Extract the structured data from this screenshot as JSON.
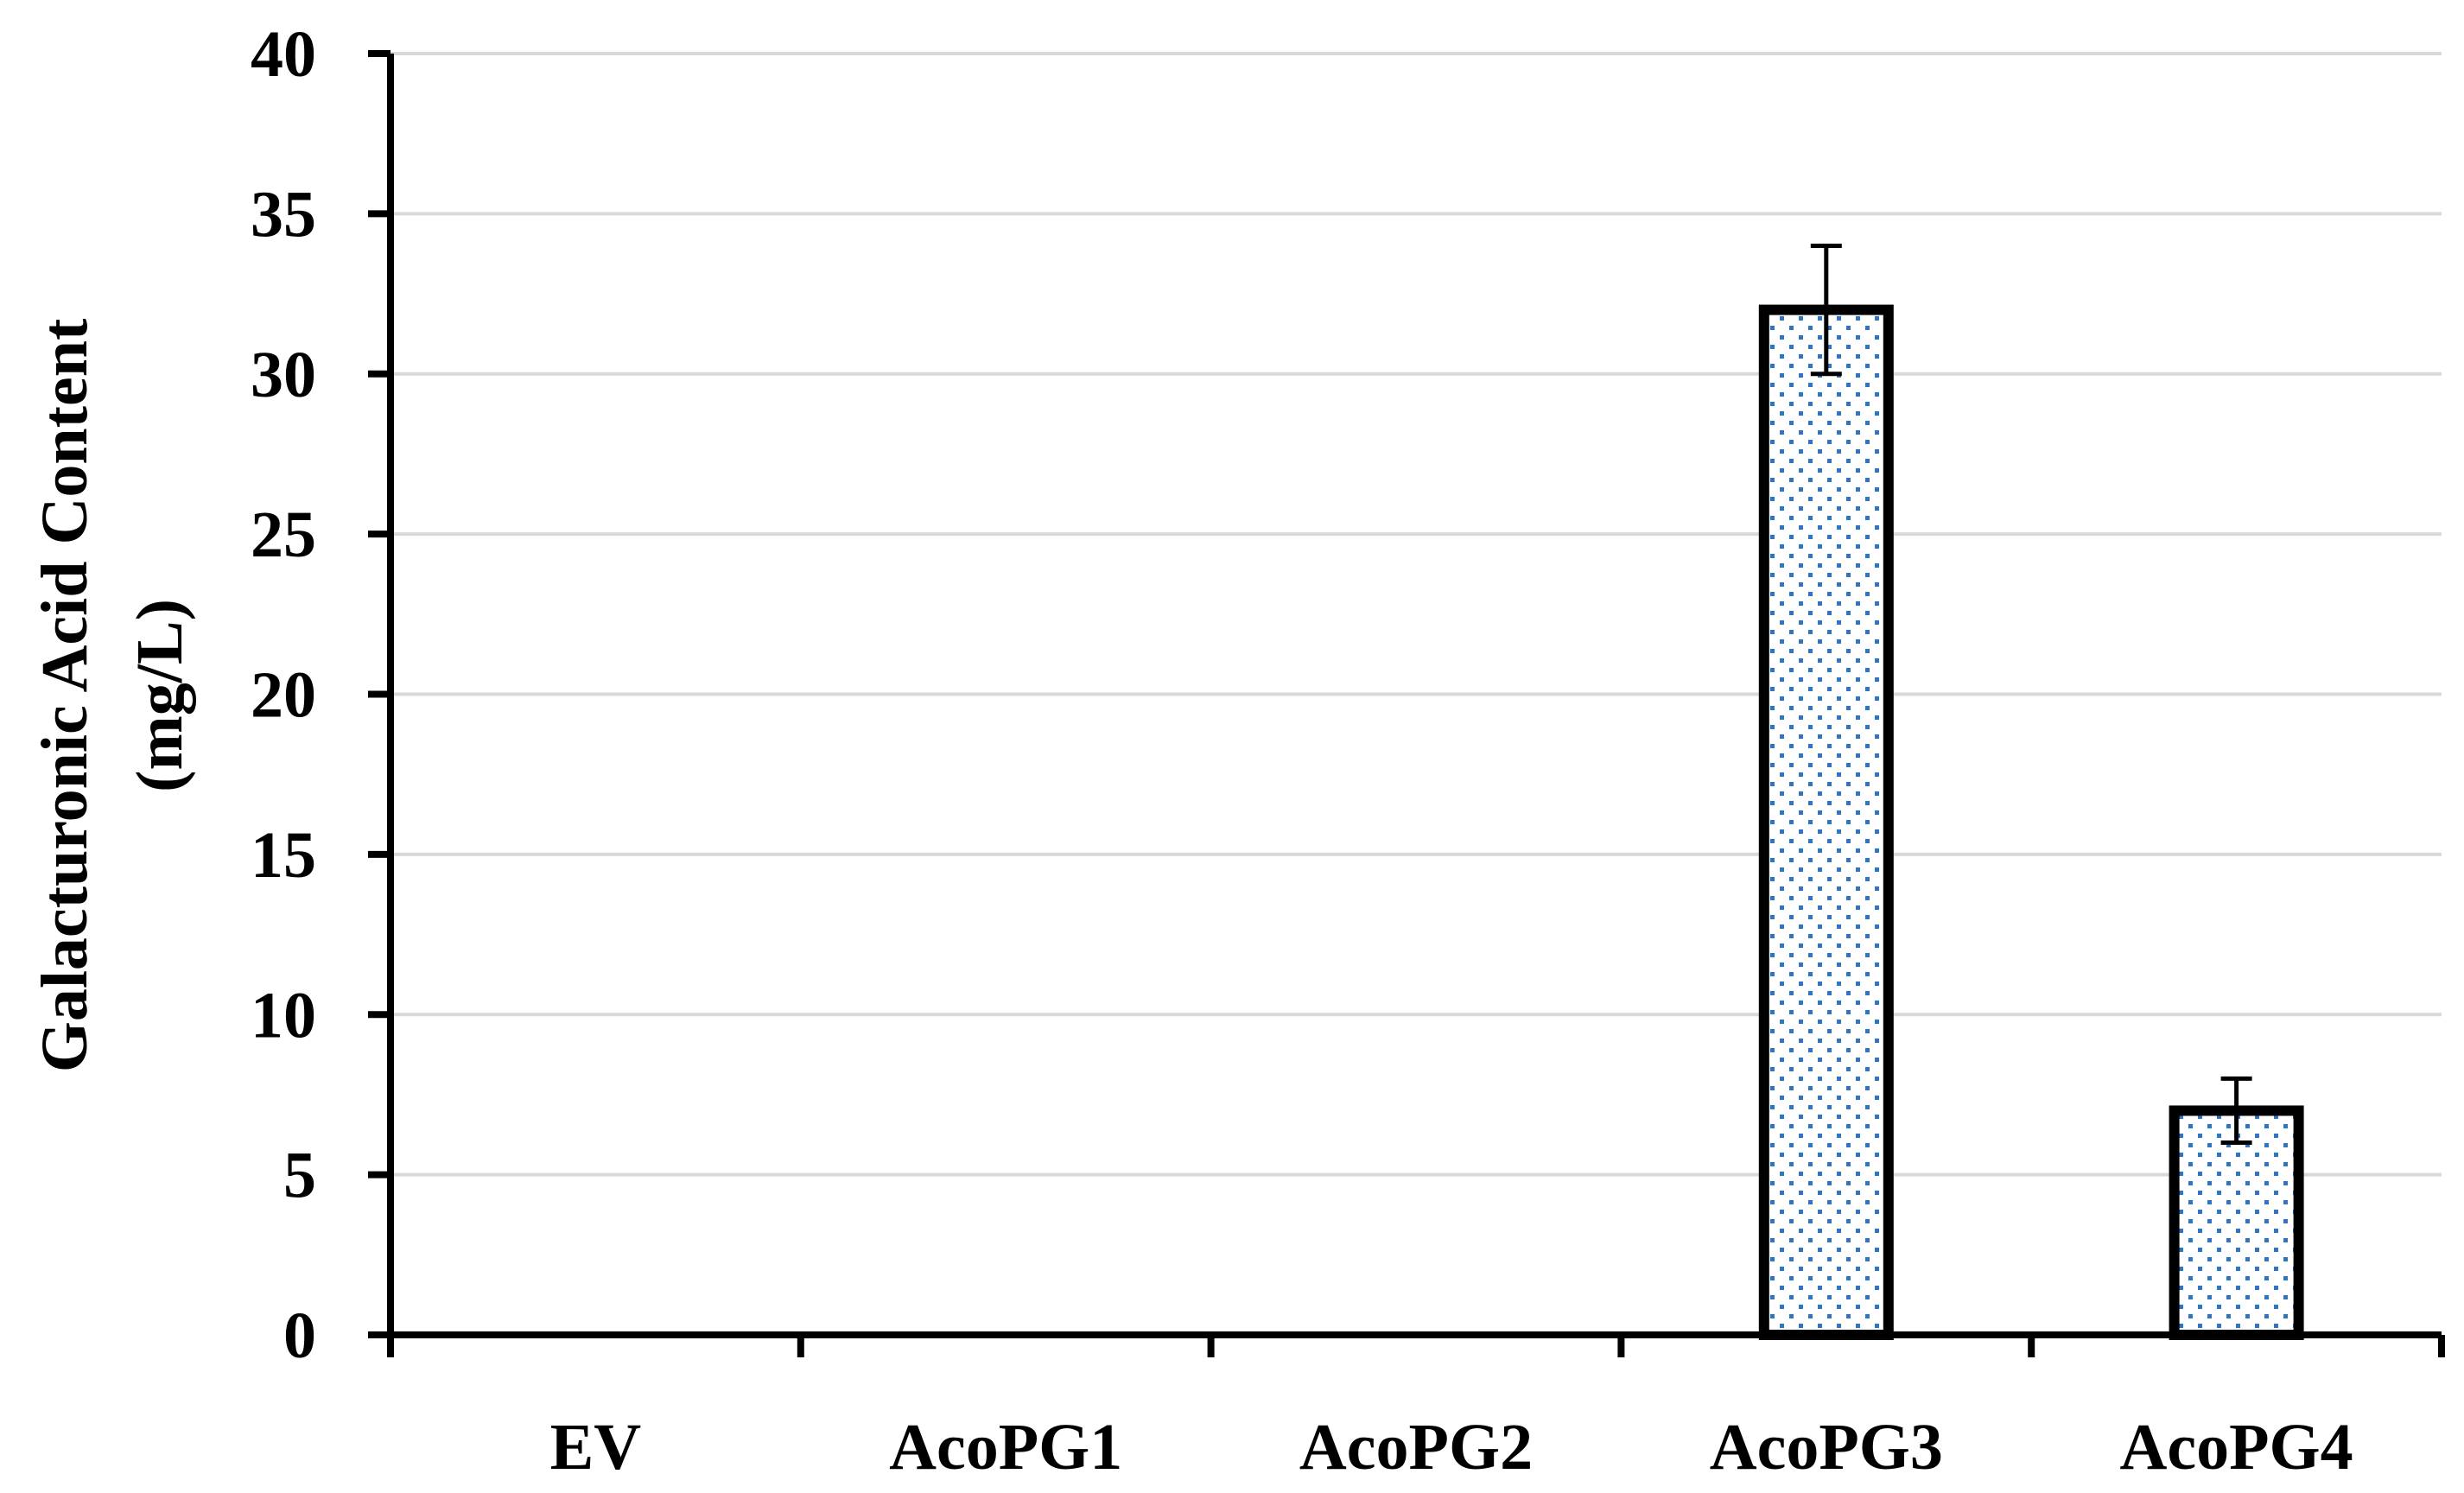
{
  "chart_data": {
    "type": "bar",
    "title": "",
    "xlabel": "",
    "ylabel_lines": [
      "Galacturonic Acid Content",
      "(mg/L)"
    ],
    "categories": [
      "EV",
      "AcoPG1",
      "AcoPG2",
      "AcoPG3",
      "AcoPG4"
    ],
    "values": [
      0,
      0,
      0,
      32,
      7
    ],
    "error": [
      0,
      0,
      0,
      2,
      1
    ],
    "ylim": [
      0,
      40
    ],
    "yticks": [
      0,
      5,
      10,
      15,
      20,
      25,
      30,
      35,
      40
    ],
    "grid": true,
    "legend": "none",
    "colors": {
      "bar_outline": "#000000",
      "bar_fill": "#ffffff",
      "bar_pattern_dot": "#2f75c6",
      "grid": "#d9d9d9",
      "axis": "#000000"
    }
  }
}
